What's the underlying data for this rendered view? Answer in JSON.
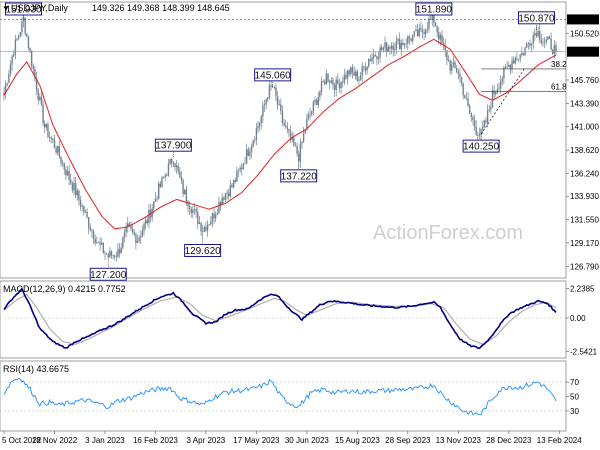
{
  "header": {
    "symbol_label": "USDJPY,Daily",
    "ohlc": "149.326 149.368 148.399 148.645"
  },
  "watermark": "ActionForex.com",
  "colors": {
    "candle": "#708090",
    "ema": "#e02020",
    "macd_line": "#000080",
    "macd_signal": "#b0b0b0",
    "rsi": "#1e90ff",
    "box_border": "#00008b"
  },
  "chart_data": [
    {
      "type": "line",
      "title": "USDJPY,Daily",
      "ylim": [
        125.8,
        153.5
      ],
      "ticks": [
        {
          "v": 151.93,
          "label": "151.930"
        },
        {
          "v": 150.52,
          "label": "150.520"
        },
        {
          "v": 148.645,
          "label": "148.645"
        },
        {
          "v": 145.76,
          "label": "145.760"
        },
        {
          "v": 143.39,
          "label": "143.390"
        },
        {
          "v": 141.0,
          "label": "141.000"
        },
        {
          "v": 138.62,
          "label": "138.620"
        },
        {
          "v": 136.24,
          "label": "136.240"
        },
        {
          "v": 133.93,
          "label": "133.930"
        },
        {
          "v": 131.55,
          "label": "131.550"
        },
        {
          "v": 129.17,
          "label": "129.170"
        },
        {
          "v": 126.79,
          "label": "126.790"
        }
      ],
      "x_labels": [
        {
          "i": 0,
          "label": "5 Oct 2022"
        },
        {
          "i": 31,
          "label": "18 Nov 2022"
        },
        {
          "i": 62,
          "label": "3 Jan 2023"
        },
        {
          "i": 93,
          "label": "16 Feb 2023"
        },
        {
          "i": 124,
          "label": "3 Apr 2023"
        },
        {
          "i": 155,
          "label": "17 May 2023"
        },
        {
          "i": 186,
          "label": "30 Jun 2023"
        },
        {
          "i": 217,
          "label": "15 Aug 2023"
        },
        {
          "i": 248,
          "label": "28 Sep 2023"
        },
        {
          "i": 279,
          "label": "13 Nov 2023"
        },
        {
          "i": 310,
          "label": "28 Dec 2023"
        },
        {
          "i": 341,
          "label": "13 Feb 2024"
        }
      ],
      "price_anchors": [
        [
          0,
          144.5
        ],
        [
          6,
          148.9
        ],
        [
          12,
          151.9
        ],
        [
          18,
          146.8
        ],
        [
          25,
          141.0
        ],
        [
          32,
          138.8
        ],
        [
          38,
          136.5
        ],
        [
          45,
          134.0
        ],
        [
          52,
          131.2
        ],
        [
          58,
          129.0
        ],
        [
          64,
          127.8
        ],
        [
          70,
          128.2
        ],
        [
          76,
          130.6
        ],
        [
          82,
          129.6
        ],
        [
          88,
          131.5
        ],
        [
          94,
          134.2
        ],
        [
          100,
          136.5
        ],
        [
          104,
          137.9
        ],
        [
          110,
          134.5
        ],
        [
          116,
          132.5
        ],
        [
          122,
          130.6
        ],
        [
          128,
          131.8
        ],
        [
          134,
          133.9
        ],
        [
          140,
          134.9
        ],
        [
          146,
          137.0
        ],
        [
          152,
          139.4
        ],
        [
          158,
          142.0
        ],
        [
          162,
          144.5
        ],
        [
          165,
          145.06
        ],
        [
          171,
          141.5
        ],
        [
          176,
          139.6
        ],
        [
          181,
          138.0
        ],
        [
          186,
          141.5
        ],
        [
          192,
          143.8
        ],
        [
          198,
          146.2
        ],
        [
          204,
          145.2
        ],
        [
          212,
          146.6
        ],
        [
          218,
          146.0
        ],
        [
          224,
          147.9
        ],
        [
          232,
          148.9
        ],
        [
          238,
          149.4
        ],
        [
          244,
          149.5
        ],
        [
          250,
          150.1
        ],
        [
          256,
          150.5
        ],
        [
          261,
          151.7
        ],
        [
          264,
          151.93
        ],
        [
          268,
          149.8
        ],
        [
          274,
          147.2
        ],
        [
          279,
          146.6
        ],
        [
          285,
          142.8
        ],
        [
          290,
          140.7
        ],
        [
          293,
          140.25
        ],
        [
          296,
          141.5
        ],
        [
          300,
          144.2
        ],
        [
          306,
          146.1
        ],
        [
          312,
          147.8
        ],
        [
          318,
          148.4
        ],
        [
          323,
          149.8
        ],
        [
          327,
          150.87
        ],
        [
          331,
          149.8
        ],
        [
          335,
          149.5
        ],
        [
          339,
          148.645
        ]
      ],
      "ema_anchors": [
        [
          0,
          144.2
        ],
        [
          8,
          146.4
        ],
        [
          14,
          147.6
        ],
        [
          22,
          145.2
        ],
        [
          30,
          141.2
        ],
        [
          40,
          137.8
        ],
        [
          50,
          134.6
        ],
        [
          60,
          131.9
        ],
        [
          68,
          130.6
        ],
        [
          76,
          130.8
        ],
        [
          86,
          131.7
        ],
        [
          96,
          132.8
        ],
        [
          106,
          133.6
        ],
        [
          116,
          133.1
        ],
        [
          126,
          132.6
        ],
        [
          136,
          133.2
        ],
        [
          146,
          134.3
        ],
        [
          156,
          136.1
        ],
        [
          166,
          138.2
        ],
        [
          176,
          139.8
        ],
        [
          186,
          140.8
        ],
        [
          196,
          142.5
        ],
        [
          206,
          143.9
        ],
        [
          216,
          144.9
        ],
        [
          226,
          146.1
        ],
        [
          236,
          147.3
        ],
        [
          246,
          148.2
        ],
        [
          256,
          149.2
        ],
        [
          264,
          149.9
        ],
        [
          274,
          148.9
        ],
        [
          284,
          146.4
        ],
        [
          292,
          144.3
        ],
        [
          300,
          143.7
        ],
        [
          308,
          144.4
        ],
        [
          318,
          145.8
        ],
        [
          328,
          147.3
        ],
        [
          339,
          148.3
        ]
      ],
      "fib_levels": [
        {
          "v": 146.89,
          "label": "38.2",
          "i_start": 293
        },
        {
          "v": 144.6,
          "label": "61.8",
          "i_start": 293
        }
      ],
      "trendline": {
        "i1": 293,
        "v1": 140.25,
        "i2": 320,
        "v2": 147.0
      },
      "callouts": [
        {
          "i": 12,
          "v": 151.9,
          "label": "151.930",
          "kind": "high"
        },
        {
          "i": 64,
          "v": 127.2,
          "label": "127.200",
          "kind": "low"
        },
        {
          "i": 104,
          "v": 137.9,
          "label": "137.900",
          "kind": "high"
        },
        {
          "i": 122,
          "v": 129.62,
          "label": "129.620",
          "kind": "low"
        },
        {
          "i": 165,
          "v": 145.06,
          "label": "145.060",
          "kind": "high"
        },
        {
          "i": 181,
          "v": 137.22,
          "label": "137.220",
          "kind": "low"
        },
        {
          "i": 264,
          "v": 151.89,
          "label": "151.890",
          "kind": "high"
        },
        {
          "i": 293,
          "v": 140.25,
          "label": "140.250",
          "kind": "low"
        },
        {
          "i": 327,
          "v": 150.87,
          "label": "150.870",
          "kind": "high"
        }
      ],
      "last_price": 148.645,
      "last_price_label": "148.645",
      "high_line": 151.93,
      "high_line_label": "151.930"
    },
    {
      "type": "line",
      "title": "MACD(12,26,9) 0.4215 0.7752",
      "ylim": [
        -2.9,
        2.6
      ],
      "ticks": [
        {
          "v": 2.2385,
          "label": "2.2385"
        },
        {
          "v": 0.0,
          "label": "0.00"
        },
        {
          "v": -2.5421,
          "label": "-2.5421"
        }
      ],
      "macd_anchors": [
        [
          0,
          0.7
        ],
        [
          6,
          1.6
        ],
        [
          11,
          2.2
        ],
        [
          15,
          1.2
        ],
        [
          22,
          -0.8
        ],
        [
          30,
          -1.8
        ],
        [
          38,
          -2.3
        ],
        [
          44,
          -1.8
        ],
        [
          52,
          -1.4
        ],
        [
          60,
          -0.9
        ],
        [
          66,
          -0.6
        ],
        [
          72,
          -0.2
        ],
        [
          82,
          0.6
        ],
        [
          90,
          1.2
        ],
        [
          96,
          1.6
        ],
        [
          104,
          1.9
        ],
        [
          110,
          1.2
        ],
        [
          116,
          0.3
        ],
        [
          124,
          -0.4
        ],
        [
          130,
          -0.3
        ],
        [
          136,
          0.3
        ],
        [
          142,
          0.6
        ],
        [
          150,
          0.7
        ],
        [
          156,
          1.3
        ],
        [
          163,
          1.8
        ],
        [
          168,
          1.7
        ],
        [
          173,
          1.0
        ],
        [
          178,
          0.4
        ],
        [
          183,
          -0.1
        ],
        [
          188,
          0.4
        ],
        [
          194,
          1.0
        ],
        [
          200,
          1.3
        ],
        [
          210,
          1.2
        ],
        [
          220,
          1.0
        ],
        [
          230,
          0.9
        ],
        [
          240,
          0.8
        ],
        [
          250,
          0.9
        ],
        [
          258,
          1.1
        ],
        [
          264,
          1.2
        ],
        [
          268,
          0.8
        ],
        [
          274,
          -0.5
        ],
        [
          280,
          -1.6
        ],
        [
          286,
          -2.1
        ],
        [
          292,
          -2.3
        ],
        [
          298,
          -1.6
        ],
        [
          304,
          -0.6
        ],
        [
          310,
          0.3
        ],
        [
          316,
          0.7
        ],
        [
          322,
          1.0
        ],
        [
          328,
          1.3
        ],
        [
          334,
          1.1
        ],
        [
          339,
          0.42
        ]
      ],
      "signal_anchors": [
        [
          0,
          0.6
        ],
        [
          8,
          1.4
        ],
        [
          14,
          1.8
        ],
        [
          20,
          0.8
        ],
        [
          28,
          -0.8
        ],
        [
          36,
          -1.8
        ],
        [
          44,
          -2.0
        ],
        [
          52,
          -1.6
        ],
        [
          60,
          -1.1
        ],
        [
          68,
          -0.6
        ],
        [
          76,
          0.0
        ],
        [
          86,
          0.7
        ],
        [
          96,
          1.3
        ],
        [
          106,
          1.6
        ],
        [
          114,
          1.1
        ],
        [
          122,
          0.2
        ],
        [
          130,
          -0.2
        ],
        [
          138,
          0.1
        ],
        [
          146,
          0.5
        ],
        [
          156,
          1.0
        ],
        [
          166,
          1.5
        ],
        [
          172,
          1.3
        ],
        [
          180,
          0.6
        ],
        [
          186,
          0.2
        ],
        [
          194,
          0.6
        ],
        [
          204,
          1.1
        ],
        [
          214,
          1.2
        ],
        [
          226,
          1.0
        ],
        [
          240,
          0.9
        ],
        [
          252,
          0.9
        ],
        [
          262,
          1.1
        ],
        [
          270,
          0.8
        ],
        [
          278,
          -0.5
        ],
        [
          286,
          -1.6
        ],
        [
          294,
          -2.0
        ],
        [
          302,
          -1.4
        ],
        [
          310,
          -0.3
        ],
        [
          318,
          0.5
        ],
        [
          326,
          1.0
        ],
        [
          333,
          1.2
        ],
        [
          339,
          0.78
        ]
      ]
    },
    {
      "type": "line",
      "title": "RSI(14) 43.6675",
      "ylim": [
        5,
        95
      ],
      "ticks": [
        {
          "v": 70,
          "label": "70"
        },
        {
          "v": 50,
          "label": "50"
        },
        {
          "v": 30,
          "label": "30"
        }
      ],
      "rsi_anchors": [
        [
          0,
          55
        ],
        [
          5,
          72
        ],
        [
          10,
          76
        ],
        [
          16,
          60
        ],
        [
          22,
          40
        ],
        [
          28,
          42
        ],
        [
          34,
          38
        ],
        [
          42,
          42
        ],
        [
          50,
          45
        ],
        [
          58,
          40
        ],
        [
          64,
          36
        ],
        [
          70,
          44
        ],
        [
          78,
          48
        ],
        [
          86,
          56
        ],
        [
          94,
          60
        ],
        [
          102,
          62
        ],
        [
          108,
          48
        ],
        [
          114,
          44
        ],
        [
          122,
          38
        ],
        [
          128,
          48
        ],
        [
          136,
          56
        ],
        [
          144,
          58
        ],
        [
          152,
          60
        ],
        [
          160,
          66
        ],
        [
          164,
          72
        ],
        [
          170,
          50
        ],
        [
          176,
          40
        ],
        [
          181,
          36
        ],
        [
          188,
          54
        ],
        [
          196,
          60
        ],
        [
          204,
          55
        ],
        [
          212,
          58
        ],
        [
          220,
          56
        ],
        [
          228,
          58
        ],
        [
          236,
          58
        ],
        [
          244,
          60
        ],
        [
          252,
          60
        ],
        [
          260,
          64
        ],
        [
          264,
          66
        ],
        [
          270,
          50
        ],
        [
          276,
          40
        ],
        [
          282,
          30
        ],
        [
          288,
          26
        ],
        [
          293,
          26
        ],
        [
          298,
          42
        ],
        [
          304,
          58
        ],
        [
          310,
          64
        ],
        [
          316,
          62
        ],
        [
          322,
          66
        ],
        [
          328,
          70
        ],
        [
          333,
          62
        ],
        [
          339,
          43.67
        ]
      ],
      "last_value": 43.6675
    }
  ]
}
